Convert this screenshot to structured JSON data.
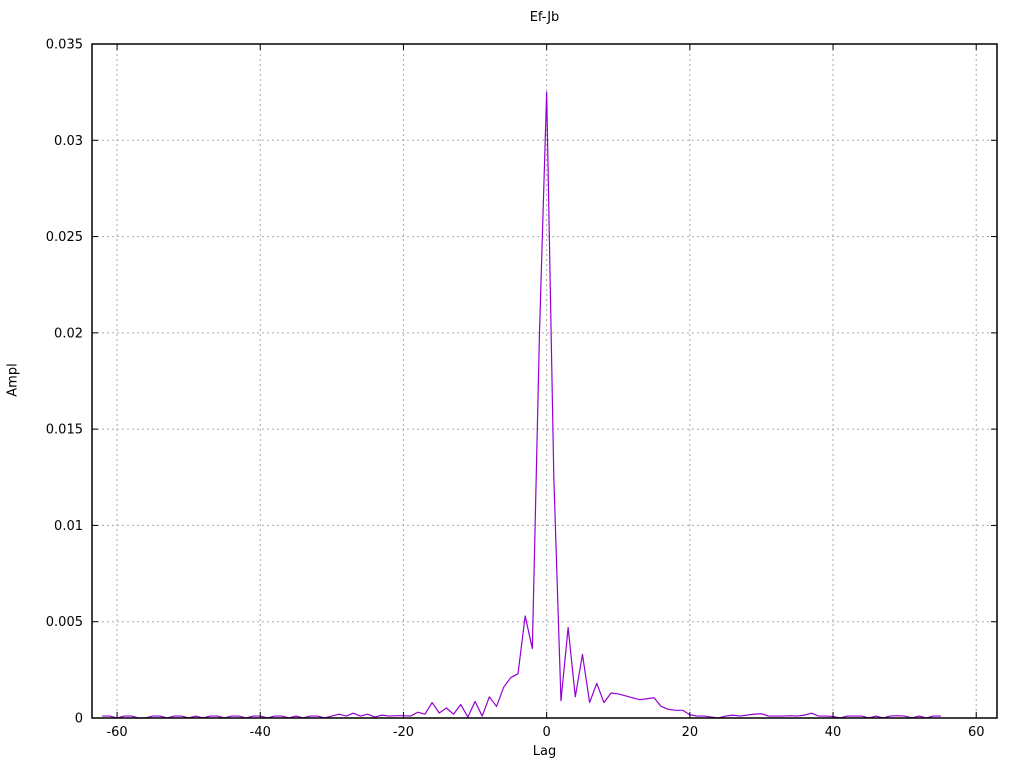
{
  "chart_data": {
    "type": "line",
    "title": "Ef-Jb",
    "xlabel": "Lag",
    "ylabel": "Ampl",
    "xlim": [
      -63.5,
      62.9
    ],
    "ylim": [
      0,
      0.035
    ],
    "xticks": [
      -60,
      -40,
      -20,
      0,
      20,
      40,
      60
    ],
    "xtick_labels": [
      "-60",
      "-40",
      "-20",
      "0",
      "20",
      "40",
      "60"
    ],
    "yticks": [
      0,
      0.005,
      0.01,
      0.015,
      0.02,
      0.025,
      0.03,
      0.035
    ],
    "ytick_labels": [
      "0",
      "0.005",
      "0.01",
      "0.015",
      "0.02",
      "0.025",
      "0.03",
      "0.035"
    ],
    "grid": true,
    "legend": "none",
    "line_color": "#9400d3",
    "colors": {
      "background": "#ffffff",
      "border": "#000000",
      "grid": "#a9a9a9",
      "text": "#000000"
    },
    "series": [
      {
        "name": "Ef-Jb",
        "x": [
          -62,
          -61,
          -60,
          -59,
          -58,
          -57,
          -56,
          -55,
          -54,
          -53,
          -52,
          -51,
          -50,
          -49,
          -48,
          -47,
          -46,
          -45,
          -44,
          -43,
          -42,
          -41,
          -40,
          -39,
          -38,
          -37,
          -36,
          -35,
          -34,
          -33,
          -32,
          -31,
          -30,
          -29,
          -28,
          -27,
          -26,
          -25,
          -24,
          -23,
          -22,
          -21,
          -20,
          -19,
          -18,
          -17,
          -16,
          -15,
          -14,
          -13,
          -12,
          -11,
          -10,
          -9,
          -8,
          -7,
          -6,
          -5,
          -4,
          -3,
          -2,
          -1,
          0,
          1,
          2,
          3,
          4,
          5,
          6,
          7,
          8,
          9,
          10,
          11,
          12,
          13,
          14,
          15,
          16,
          17,
          18,
          19,
          20,
          21,
          22,
          23,
          24,
          25,
          26,
          27,
          28,
          29,
          30,
          31,
          32,
          33,
          34,
          35,
          36,
          37,
          38,
          39,
          40,
          41,
          42,
          43,
          44,
          45,
          46,
          47,
          48,
          49,
          50,
          51,
          52,
          53,
          54,
          55
        ],
        "y": [
          0.0001,
          0.0001,
          0,
          0.0001,
          0.0001,
          0,
          0,
          0.0001,
          0.0001,
          0,
          0.0001,
          0.0001,
          0,
          0.0001,
          0,
          0.0001,
          0.0001,
          0,
          0.0001,
          0.0001,
          0,
          0.0001,
          0.0001,
          0,
          0.0001,
          0.0001,
          0,
          0.0001,
          0,
          0.0001,
          0.0001,
          0,
          0.0001,
          0.0002,
          0.0001,
          0.00025,
          0.0001,
          0.0002,
          5e-05,
          0.00015,
          0.0001,
          0.00012,
          0.00012,
          0.0001,
          0.0003,
          0.0002,
          0.0008,
          0.00026,
          0.00052,
          0.0002,
          0.0007,
          5e-05,
          0.00086,
          0.0001,
          0.0011,
          0.0006,
          0.0016,
          0.0021,
          0.0023,
          0.0053,
          0.0036,
          0.02,
          0.0325,
          0.0125,
          0.0009,
          0.0047,
          0.0011,
          0.0033,
          0.0008,
          0.0018,
          0.0008,
          0.0013,
          0.00125,
          0.00115,
          0.00105,
          0.00095,
          0.001,
          0.00105,
          0.0006,
          0.00045,
          0.0004,
          0.0004,
          0.00017,
          0.0001,
          0.0001,
          5e-05,
          0,
          0.0001,
          0.00015,
          0.0001,
          0.00015,
          0.0002,
          0.00022,
          0.0001,
          0.0001,
          0.0001,
          0.00012,
          0.0001,
          0.00015,
          0.00025,
          0.0001,
          0.0001,
          8e-05,
          0,
          0.0001,
          0.0001,
          0.0001,
          0,
          0.0001,
          0,
          0.0001,
          0.00012,
          0.0001,
          0,
          0.0001,
          0,
          0.0001,
          0.0001
        ]
      }
    ]
  }
}
